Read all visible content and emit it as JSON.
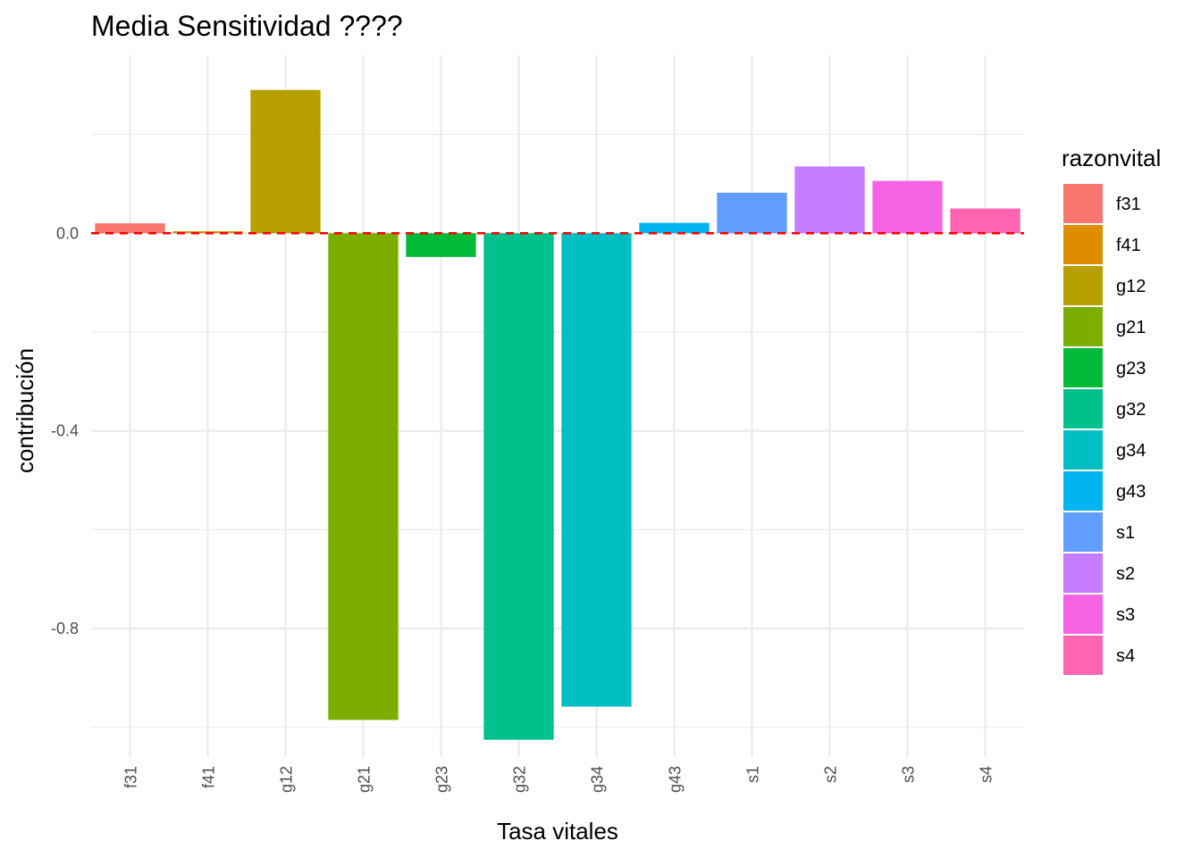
{
  "chart_data": {
    "type": "bar",
    "title": "Media Sensitividad ????",
    "xlabel": "Tasa vitales",
    "ylabel": "contribución",
    "categories": [
      "f31",
      "f41",
      "g12",
      "g21",
      "g23",
      "g32",
      "g34",
      "g43",
      "s1",
      "s2",
      "s3",
      "s4"
    ],
    "values": [
      0.02,
      0.004,
      0.29,
      -0.985,
      -0.048,
      -1.025,
      -0.958,
      0.021,
      0.082,
      0.135,
      0.106,
      0.05
    ],
    "colors": [
      "#F8766D",
      "#DE8C00",
      "#B79F00",
      "#7CAE00",
      "#00BA38",
      "#00C08B",
      "#00BFC4",
      "#00B4F0",
      "#619CFF",
      "#C77CFF",
      "#F564E3",
      "#FF64B0"
    ],
    "ylim": [
      -1.06,
      0.36
    ],
    "yticks": [
      0.0,
      -0.4,
      -0.8
    ],
    "ytick_labels": [
      "0.0",
      "-0.4",
      "-0.8"
    ],
    "reference_line": {
      "y": 0.0,
      "color": "#FF0000",
      "style": "dashed"
    },
    "grid": true,
    "legend": {
      "title": "razonvital",
      "position": "right",
      "entries": [
        "f31",
        "f41",
        "g12",
        "g21",
        "g23",
        "g32",
        "g34",
        "g43",
        "s1",
        "s2",
        "s3",
        "s4"
      ]
    }
  }
}
